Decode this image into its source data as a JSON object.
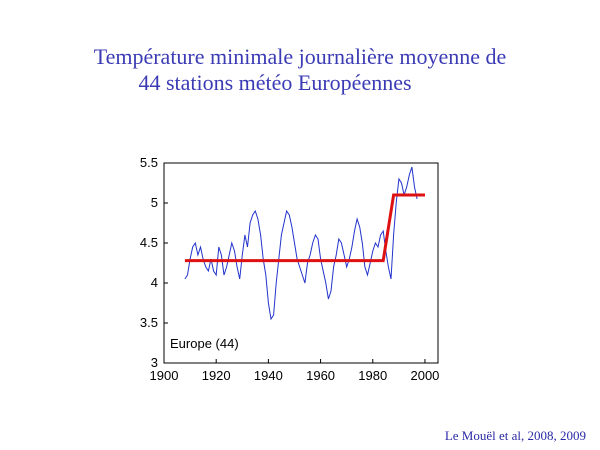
{
  "slide": {
    "title_line1": "Température minimale journalière moyenne de",
    "title_line2": "44 stations météo Européennes",
    "citation": "Le Mouël et al, 2008, 2009"
  },
  "chart_data": {
    "type": "line",
    "title": "",
    "xlabel": "",
    "ylabel": "",
    "annotation": "Europe (44)",
    "xlim": [
      1900,
      2005
    ],
    "ylim": [
      3,
      5.5
    ],
    "xticks": [
      1900,
      1920,
      1940,
      1960,
      1980,
      2000
    ],
    "yticks": [
      3,
      3.5,
      4,
      4.5,
      5,
      5.5
    ],
    "ytick_labels": [
      "3",
      "3.5",
      "4",
      "4.5",
      "5",
      "5.5"
    ],
    "grid": false,
    "colors": {
      "series": "#2233cc",
      "fit": "#dd1111"
    },
    "series": [
      {
        "x": [
          1908,
          1909,
          1910,
          1911,
          1912,
          1913,
          1914,
          1915,
          1916,
          1917,
          1918,
          1919,
          1920,
          1921,
          1922,
          1923,
          1924,
          1925,
          1926,
          1927,
          1928,
          1929,
          1930,
          1931,
          1932,
          1933,
          1934,
          1935,
          1936,
          1937,
          1938,
          1939,
          1940,
          1941,
          1942,
          1943,
          1944,
          1945,
          1946,
          1947,
          1948,
          1949,
          1950,
          1951,
          1952,
          1953,
          1954,
          1955,
          1956,
          1957,
          1958,
          1959,
          1960,
          1961,
          1962,
          1963,
          1964,
          1965,
          1966,
          1967,
          1968,
          1969,
          1970,
          1971,
          1972,
          1973,
          1974,
          1975,
          1976,
          1977,
          1978,
          1979,
          1980,
          1981,
          1982,
          1983,
          1984,
          1985,
          1986,
          1987,
          1988,
          1989,
          1990,
          1991,
          1992,
          1993,
          1994,
          1995,
          1996,
          1997
        ],
        "y": [
          4.05,
          4.1,
          4.3,
          4.45,
          4.5,
          4.35,
          4.45,
          4.3,
          4.2,
          4.15,
          4.3,
          4.15,
          4.1,
          4.45,
          4.35,
          4.1,
          4.2,
          4.35,
          4.5,
          4.4,
          4.2,
          4.05,
          4.35,
          4.6,
          4.45,
          4.75,
          4.85,
          4.9,
          4.8,
          4.6,
          4.3,
          4.1,
          3.75,
          3.55,
          3.6,
          4.0,
          4.3,
          4.6,
          4.75,
          4.9,
          4.85,
          4.7,
          4.5,
          4.3,
          4.2,
          4.1,
          4.0,
          4.25,
          4.35,
          4.5,
          4.6,
          4.55,
          4.3,
          4.15,
          4.0,
          3.8,
          3.9,
          4.2,
          4.35,
          4.55,
          4.5,
          4.35,
          4.2,
          4.3,
          4.45,
          4.65,
          4.8,
          4.7,
          4.5,
          4.2,
          4.1,
          4.25,
          4.4,
          4.5,
          4.45,
          4.6,
          4.65,
          4.4,
          4.2,
          4.05,
          4.6,
          5.0,
          5.3,
          5.25,
          5.1,
          5.2,
          5.35,
          5.45,
          5.2,
          5.05
        ]
      },
      {
        "x": [
          1908,
          1984,
          1988,
          2000
        ],
        "y": [
          4.28,
          4.28,
          5.1,
          5.1
        ]
      }
    ]
  }
}
